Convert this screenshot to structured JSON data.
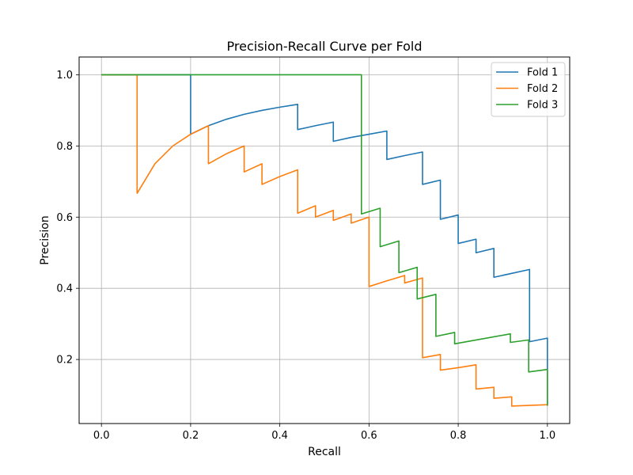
{
  "chart_data": {
    "type": "line",
    "title": "Precision-Recall Curve per Fold",
    "xlabel": "Recall",
    "ylabel": "Precision",
    "xlim": [
      -0.05,
      1.05
    ],
    "ylim": [
      0.02,
      1.05
    ],
    "xticks": [
      0.0,
      0.2,
      0.4,
      0.6,
      0.8,
      1.0
    ],
    "xtick_labels": [
      "0.0",
      "0.2",
      "0.4",
      "0.6",
      "0.8",
      "1.0"
    ],
    "yticks": [
      0.2,
      0.4,
      0.6,
      0.8,
      1.0
    ],
    "ytick_labels": [
      "0.2",
      "0.4",
      "0.6",
      "0.8",
      "1.0"
    ],
    "grid": true,
    "legend_position": "top-right",
    "series": [
      {
        "name": "Fold 1",
        "color": "#1f77b4",
        "points": [
          [
            0.0,
            1.0
          ],
          [
            0.2,
            1.0
          ],
          [
            0.2,
            0.833
          ],
          [
            0.24,
            0.857
          ],
          [
            0.28,
            0.875
          ],
          [
            0.32,
            0.889
          ],
          [
            0.36,
            0.9
          ],
          [
            0.4,
            0.909
          ],
          [
            0.44,
            0.917
          ],
          [
            0.44,
            0.846
          ],
          [
            0.48,
            0.857
          ],
          [
            0.52,
            0.867
          ],
          [
            0.52,
            0.813
          ],
          [
            0.56,
            0.824
          ],
          [
            0.6,
            0.833
          ],
          [
            0.64,
            0.842
          ],
          [
            0.64,
            0.762
          ],
          [
            0.68,
            0.773
          ],
          [
            0.72,
            0.783
          ],
          [
            0.72,
            0.692
          ],
          [
            0.76,
            0.704
          ],
          [
            0.76,
            0.594
          ],
          [
            0.8,
            0.606
          ],
          [
            0.8,
            0.526
          ],
          [
            0.84,
            0.538
          ],
          [
            0.84,
            0.5
          ],
          [
            0.88,
            0.512
          ],
          [
            0.88,
            0.431
          ],
          [
            0.92,
            0.442
          ],
          [
            0.96,
            0.453
          ],
          [
            0.96,
            0.25
          ],
          [
            1.0,
            0.26
          ],
          [
            1.0,
            0.07
          ]
        ]
      },
      {
        "name": "Fold 2",
        "color": "#ff7f0e",
        "points": [
          [
            0.0,
            1.0
          ],
          [
            0.08,
            1.0
          ],
          [
            0.08,
            0.667
          ],
          [
            0.12,
            0.75
          ],
          [
            0.16,
            0.8
          ],
          [
            0.2,
            0.833
          ],
          [
            0.24,
            0.857
          ],
          [
            0.24,
            0.75
          ],
          [
            0.28,
            0.778
          ],
          [
            0.32,
            0.8
          ],
          [
            0.32,
            0.727
          ],
          [
            0.36,
            0.75
          ],
          [
            0.36,
            0.692
          ],
          [
            0.4,
            0.714
          ],
          [
            0.44,
            0.733
          ],
          [
            0.44,
            0.611
          ],
          [
            0.48,
            0.632
          ],
          [
            0.48,
            0.6
          ],
          [
            0.52,
            0.619
          ],
          [
            0.52,
            0.591
          ],
          [
            0.56,
            0.609
          ],
          [
            0.56,
            0.583
          ],
          [
            0.6,
            0.6
          ],
          [
            0.6,
            0.405
          ],
          [
            0.64,
            0.421
          ],
          [
            0.68,
            0.436
          ],
          [
            0.68,
            0.415
          ],
          [
            0.72,
            0.429
          ],
          [
            0.72,
            0.205
          ],
          [
            0.76,
            0.214
          ],
          [
            0.76,
            0.17
          ],
          [
            0.8,
            0.177
          ],
          [
            0.84,
            0.185
          ],
          [
            0.84,
            0.117
          ],
          [
            0.88,
            0.122
          ],
          [
            0.88,
            0.091
          ],
          [
            0.92,
            0.095
          ],
          [
            0.92,
            0.069
          ],
          [
            1.0,
            0.073
          ]
        ]
      },
      {
        "name": "Fold 3",
        "color": "#2ca02c",
        "points": [
          [
            0.0,
            1.0
          ],
          [
            0.583,
            1.0
          ],
          [
            0.583,
            0.609
          ],
          [
            0.625,
            0.625
          ],
          [
            0.625,
            0.517
          ],
          [
            0.667,
            0.533
          ],
          [
            0.667,
            0.444
          ],
          [
            0.708,
            0.459
          ],
          [
            0.708,
            0.37
          ],
          [
            0.75,
            0.383
          ],
          [
            0.75,
            0.265
          ],
          [
            0.792,
            0.276
          ],
          [
            0.792,
            0.244
          ],
          [
            0.917,
            0.272
          ],
          [
            0.917,
            0.248
          ],
          [
            0.958,
            0.255
          ],
          [
            0.958,
            0.165
          ],
          [
            1.0,
            0.172
          ],
          [
            1.0,
            0.07
          ]
        ]
      }
    ]
  }
}
